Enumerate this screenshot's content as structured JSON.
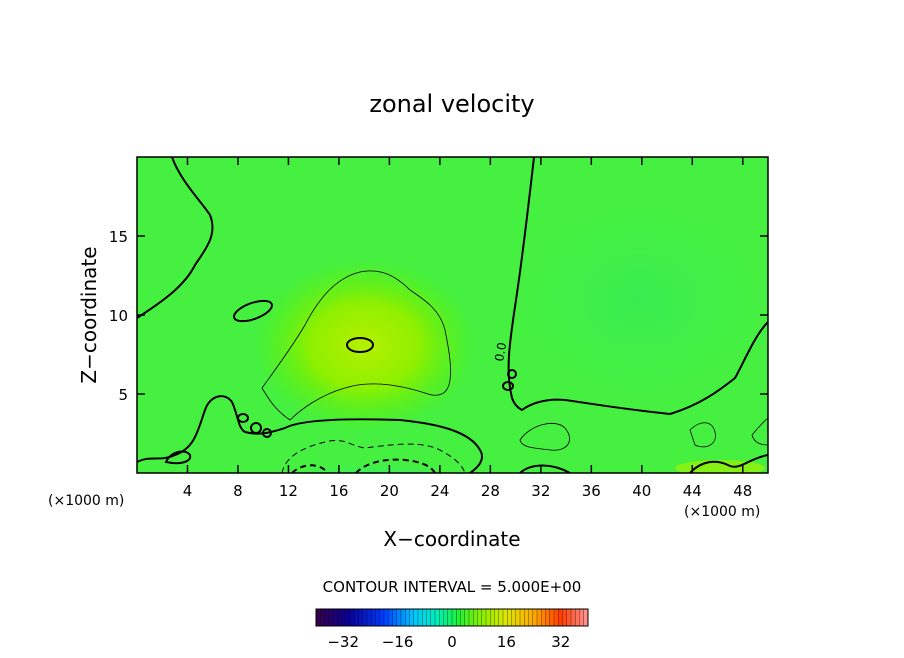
{
  "chart_data": {
    "type": "heatmap",
    "title": "zonal velocity",
    "xlabel": "X−coordinate",
    "ylabel": "Z−coordinate",
    "x_unit_label": "(×1000 m)",
    "x_unit_label_right": "(×1000 m)",
    "xlim": [
      0,
      50
    ],
    "ylim": [
      0,
      20
    ],
    "x_ticks": [
      "4",
      "8",
      "12",
      "16",
      "20",
      "24",
      "28",
      "32",
      "36",
      "40",
      "44",
      "48"
    ],
    "x_tick_values": [
      4,
      8,
      12,
      16,
      20,
      24,
      28,
      32,
      36,
      40,
      44,
      48
    ],
    "y_ticks": [
      "5",
      "10",
      "15"
    ],
    "y_tick_values": [
      5,
      10,
      15
    ],
    "contour_interval_label": "CONTOUR INTERVAL = 5.000E+00",
    "contour_interval": 5.0,
    "contour_label": "0.0",
    "colorbar": {
      "min": -40,
      "max": 40,
      "tick_labels": [
        "−32",
        "−16",
        "0",
        "16",
        "32"
      ],
      "tick_values": [
        -32,
        -16,
        0,
        16,
        32
      ]
    },
    "features": [
      {
        "kind": "max",
        "x": 18,
        "z": 8,
        "value": 12
      },
      {
        "kind": "min",
        "x": 20,
        "z": 0,
        "value": -10
      }
    ],
    "grid": false,
    "colormap": "rainbow"
  }
}
